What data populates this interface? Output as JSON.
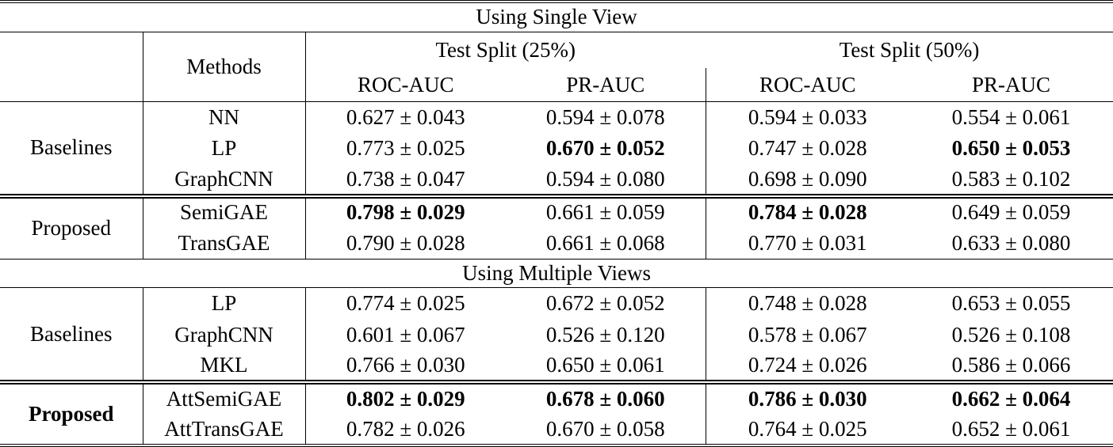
{
  "header": {
    "methods_label": "Methods",
    "groups": [
      {
        "label": "Test Split (25%)",
        "sub": [
          "ROC-AUC",
          "PR-AUC"
        ]
      },
      {
        "label": "Test Split (50%)",
        "sub": [
          "ROC-AUC",
          "PR-AUC"
        ]
      }
    ]
  },
  "sections": [
    {
      "banner": "Using Single View",
      "blocks": [
        {
          "group": "Baselines",
          "group_bold": false,
          "rows": [
            {
              "method": "NN",
              "values": [
                "0.627 ± 0.043",
                "0.594 ± 0.078",
                "0.594 ± 0.033",
                "0.554 ± 0.061"
              ],
              "bold": [
                false,
                false,
                false,
                false
              ]
            },
            {
              "method": "LP",
              "values": [
                "0.773 ± 0.025",
                "0.670 ± 0.052",
                "0.747 ± 0.028",
                "0.650 ± 0.053"
              ],
              "bold": [
                false,
                true,
                false,
                true
              ]
            },
            {
              "method": "GraphCNN",
              "values": [
                "0.738 ± 0.047",
                "0.594 ± 0.080",
                "0.698 ± 0.090",
                "0.583 ± 0.102"
              ],
              "bold": [
                false,
                false,
                false,
                false
              ]
            }
          ]
        },
        {
          "group": "Proposed",
          "group_bold": false,
          "rows": [
            {
              "method": "SemiGAE",
              "values": [
                "0.798 ± 0.029",
                "0.661 ± 0.059",
                "0.784 ± 0.028",
                "0.649 ± 0.059"
              ],
              "bold": [
                true,
                false,
                true,
                false
              ]
            },
            {
              "method": "TransGAE",
              "values": [
                "0.790 ± 0.028",
                "0.661 ± 0.068",
                "0.770 ± 0.031",
                "0.633 ± 0.080"
              ],
              "bold": [
                false,
                false,
                false,
                false
              ]
            }
          ]
        }
      ]
    },
    {
      "banner": "Using Multiple Views",
      "blocks": [
        {
          "group": "Baselines",
          "group_bold": false,
          "rows": [
            {
              "method": "LP",
              "values": [
                "0.774 ± 0.025",
                "0.672 ± 0.052",
                "0.748 ± 0.028",
                "0.653 ± 0.055"
              ],
              "bold": [
                false,
                false,
                false,
                false
              ]
            },
            {
              "method": "GraphCNN",
              "values": [
                "0.601 ± 0.067",
                "0.526 ± 0.120",
                "0.578 ± 0.067",
                "0.526 ± 0.108"
              ],
              "bold": [
                false,
                false,
                false,
                false
              ]
            },
            {
              "method": "MKL",
              "values": [
                "0.766 ± 0.030",
                "0.650 ± 0.061",
                "0.724 ± 0.026",
                "0.586 ± 0.066"
              ],
              "bold": [
                false,
                false,
                false,
                false
              ]
            }
          ]
        },
        {
          "group": "Proposed",
          "group_bold": true,
          "rows": [
            {
              "method": "AttSemiGAE",
              "values": [
                "0.802 ± 0.029",
                "0.678 ± 0.060",
                "0.786 ± 0.030",
                "0.662 ± 0.064"
              ],
              "bold": [
                true,
                true,
                true,
                true
              ]
            },
            {
              "method": "AttTransGAE",
              "values": [
                "0.782 ± 0.026",
                "0.670 ± 0.058",
                "0.764 ± 0.025",
                "0.652 ± 0.061"
              ],
              "bold": [
                false,
                false,
                false,
                false
              ]
            }
          ]
        }
      ]
    }
  ]
}
